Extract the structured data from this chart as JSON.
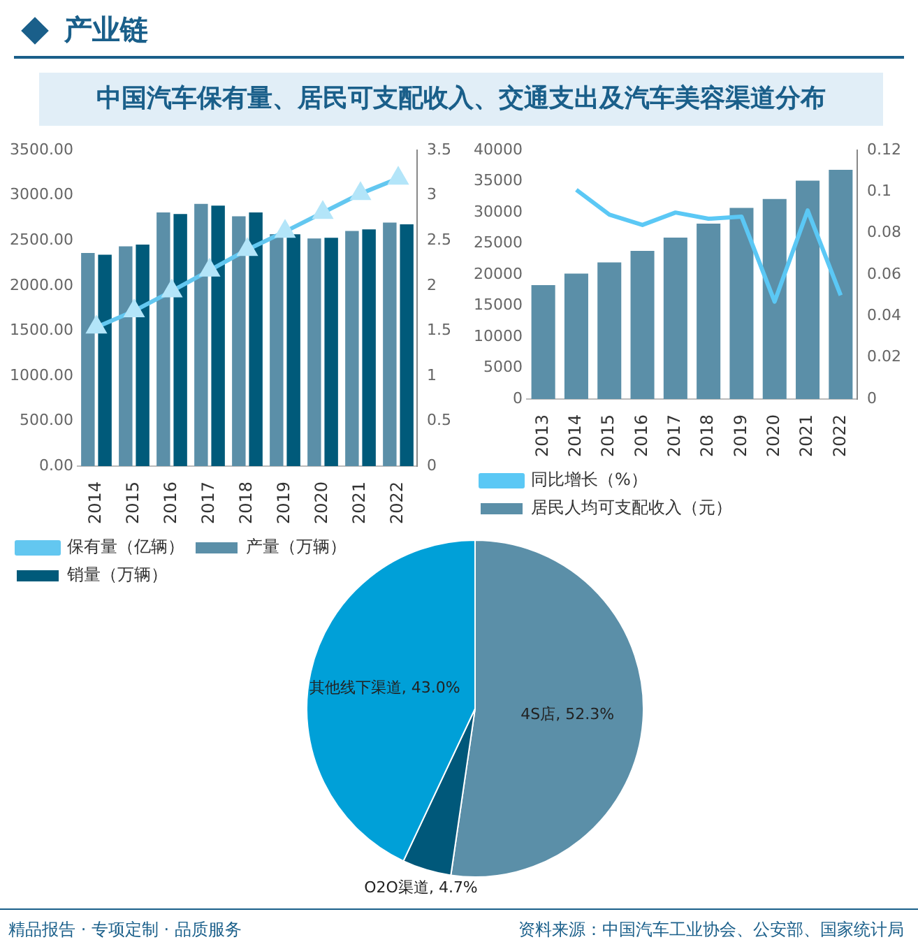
{
  "chart_data": [
    {
      "type": "bar",
      "title": "中国汽车保有量、居民可支配收入、交通支出及汽车美容渠道分布",
      "annotations": [
        "产业链"
      ],
      "categories": [
        "2014",
        "2015",
        "2016",
        "2017",
        "2018",
        "2019",
        "2020",
        "2021",
        "2022"
      ],
      "series": [
        {
          "name": "产量（万辆）",
          "color": "#5b8fa8",
          "values": [
            2362,
            2437,
            2812,
            2906,
            2769,
            2572,
            2523,
            2606,
            2700
          ]
        },
        {
          "name": "销量（万辆）",
          "color": "#005a7a",
          "values": [
            2344,
            2456,
            2794,
            2888,
            2812,
            2569,
            2531,
            2625,
            2681
          ]
        },
        {
          "name": "保有量（亿辆）",
          "color": "#63c7f0",
          "type": "line",
          "axis": "y2",
          "values": [
            1.54,
            1.72,
            1.94,
            2.17,
            2.4,
            2.6,
            2.81,
            3.02,
            3.19
          ]
        }
      ],
      "ylim": [
        0,
        3500
      ],
      "yticks": [
        {
          "value": 0,
          "label": "0.00"
        },
        {
          "value": 500,
          "label": "500.00"
        },
        {
          "value": 1000,
          "label": "1000.00"
        },
        {
          "value": 1500,
          "label": "1500.00"
        },
        {
          "value": 2000,
          "label": "2000.00"
        },
        {
          "value": 2500,
          "label": "2500.00"
        },
        {
          "value": 3000,
          "label": "3000.00"
        },
        {
          "value": 3500,
          "label": "3500.00"
        }
      ],
      "y2lim": [
        0,
        3.5
      ],
      "y2ticks": [
        0,
        0.5,
        1,
        1.5,
        2,
        2.5,
        3,
        3.5
      ],
      "marker": "triangle",
      "legend": "bottom",
      "grid": false
    },
    {
      "type": "bar",
      "categories": [
        "2013",
        "2014",
        "2015",
        "2016",
        "2017",
        "2018",
        "2019",
        "2020",
        "2021",
        "2022"
      ],
      "series": [
        {
          "name": "居民人均可支配收入（元）",
          "color": "#5b8fa8",
          "values": [
            18311,
            20167,
            21966,
            23821,
            25974,
            28228,
            30733,
            32189,
            35128,
            36883
          ]
        },
        {
          "name": "同比增长（%）",
          "color": "#5bc8f5",
          "type": "line",
          "axis": "y2",
          "values": [
            null,
            0.101,
            0.089,
            0.084,
            0.09,
            0.087,
            0.088,
            0.047,
            0.091,
            0.05
          ]
        }
      ],
      "ylim": [
        0,
        40000
      ],
      "yticks": [
        0,
        5000,
        10000,
        15000,
        20000,
        25000,
        30000,
        35000,
        40000
      ],
      "y2lim": [
        0,
        0.12
      ],
      "y2ticks": [
        0,
        0.02,
        0.04,
        0.06,
        0.08,
        0.1,
        0.12
      ],
      "legend": "bottom",
      "grid": false
    },
    {
      "type": "pie",
      "categories": [
        "4S店",
        "O2O渠道",
        "其他线下渠道"
      ],
      "values": [
        52.3,
        4.7,
        43.0
      ],
      "colors": [
        "#5b8fa8",
        "#00587a",
        "#00a0d8"
      ],
      "value_labels": [
        "52.3%",
        "4.7%",
        "43.0%"
      ],
      "annotations": [
        "资料来源：中国汽车工业协会、公安部、国家统计局",
        "精品报告 · 专项定制 · 品质服务"
      ]
    }
  ]
}
